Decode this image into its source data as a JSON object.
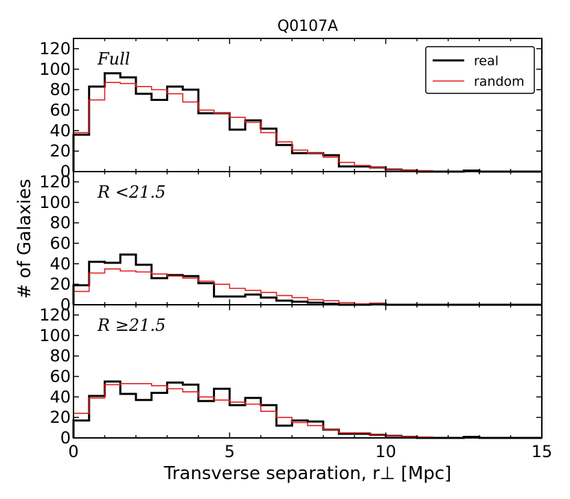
{
  "chart_data": {
    "type": "histogram",
    "title": "Q0107A",
    "xlabel": "Transverse separation, r⊥ [Mpc]",
    "ylabel": "# of Galaxies",
    "xlim": [
      0,
      15
    ],
    "ylim": [
      0,
      130
    ],
    "x_ticks": [
      "0",
      "5",
      "10",
      "15"
    ],
    "y_ticks": [
      "0",
      "20",
      "40",
      "60",
      "80",
      "100",
      "120"
    ],
    "bin_edges": [
      0,
      0.5,
      1,
      1.5,
      2,
      2.5,
      3,
      3.5,
      4,
      4.5,
      5,
      5.5,
      6,
      6.5,
      7,
      7.5,
      8,
      8.5,
      9,
      9.5,
      10,
      10.5,
      11,
      11.5,
      12,
      12.5,
      13,
      13.5,
      14,
      14.5,
      15
    ],
    "legend": {
      "placement": "top-right",
      "entries": [
        {
          "name": "real",
          "color": "#000000"
        },
        {
          "name": "random",
          "color": "#e41a1c"
        }
      ]
    },
    "panels": [
      {
        "label": "Full",
        "series": [
          {
            "name": "real",
            "color": "#000000",
            "values": [
              36,
              83,
              96,
              92,
              76,
              70,
              83,
              80,
              57,
              57,
              41,
              50,
              42,
              26,
              18,
              18,
              16,
              5,
              5,
              4,
              2,
              1,
              0,
              0,
              0,
              1,
              0,
              0,
              0,
              0
            ]
          },
          {
            "name": "random",
            "color": "#e41a1c",
            "values": [
              38,
              70,
              87,
              86,
              83,
              80,
              76,
              68,
              60,
              57,
              53,
              48,
              38,
              29,
              21,
              18,
              14,
              9,
              6,
              4,
              2,
              1,
              1,
              0,
              0,
              0,
              0,
              0,
              0,
              0
            ]
          }
        ]
      },
      {
        "label": "R <21.5",
        "series": [
          {
            "name": "real",
            "color": "#000000",
            "values": [
              19,
              42,
              41,
              49,
              39,
              26,
              29,
              28,
              21,
              8,
              8,
              10,
              7,
              4,
              3,
              2,
              1,
              0,
              0,
              1,
              0,
              0,
              0,
              0,
              0,
              0,
              0,
              0,
              0,
              0
            ]
          },
          {
            "name": "random",
            "color": "#e41a1c",
            "values": [
              13,
              31,
              35,
              33,
              32,
              30,
              28,
              26,
              23,
              20,
              16,
              14,
              12,
              9,
              7,
              5,
              4,
              2,
              1,
              1,
              0,
              0,
              0,
              0,
              0,
              0,
              0,
              0,
              0,
              0
            ]
          }
        ]
      },
      {
        "label": "R ≥21.5",
        "series": [
          {
            "name": "real",
            "color": "#000000",
            "values": [
              17,
              41,
              55,
              43,
              37,
              44,
              54,
              52,
              36,
              48,
              32,
              39,
              32,
              12,
              17,
              16,
              8,
              4,
              4,
              3,
              2,
              1,
              0,
              0,
              0,
              1,
              0,
              0,
              0,
              0
            ]
          },
          {
            "name": "random",
            "color": "#e41a1c",
            "values": [
              24,
              39,
              52,
              53,
              53,
              51,
              48,
              45,
              40,
              37,
              35,
              33,
              26,
              20,
              15,
              12,
              8,
              5,
              5,
              3,
              2,
              1,
              1,
              0,
              0,
              0,
              0,
              0,
              0,
              0
            ]
          }
        ]
      }
    ]
  }
}
